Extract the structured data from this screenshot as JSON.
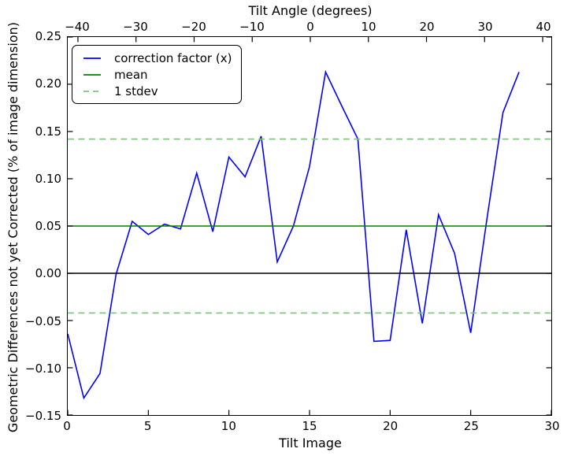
{
  "figure": {
    "background": "#ffffff",
    "axis_color": "#000000"
  },
  "chart_data": {
    "type": "line",
    "title": "",
    "xlabel": "Tilt Image",
    "top_xlabel": "Tilt Angle (degrees)",
    "ylabel": "Geometric Differences not yet Corrected (% of image dimension)",
    "xlim": [
      0,
      30
    ],
    "ylim": [
      -0.15,
      0.25
    ],
    "x_ticks": [
      0,
      5,
      10,
      15,
      20,
      25,
      30
    ],
    "top_ticks_degrees": [
      -40,
      -30,
      -20,
      -10,
      0,
      10,
      20,
      30,
      40
    ],
    "y_ticks": [
      0.25,
      0.2,
      0.15,
      0.1,
      0.05,
      0.0,
      -0.05,
      -0.1,
      -0.15
    ],
    "grid": "off",
    "legend_position": "upper left",
    "series": [
      {
        "name": "correction factor (x)",
        "kind": "line",
        "color": "#0000ff",
        "x": [
          0,
          1,
          2,
          3,
          4,
          5,
          6,
          7,
          8,
          9,
          10,
          11,
          12,
          13,
          14,
          15,
          16,
          17,
          18,
          19,
          20,
          21,
          22,
          23,
          24,
          25,
          26,
          27,
          28
        ],
        "y": [
          -0.064,
          -0.132,
          -0.106,
          -0.001,
          0.055,
          0.041,
          0.052,
          0.047,
          0.106,
          0.044,
          0.123,
          0.102,
          0.145,
          0.012,
          0.05,
          0.113,
          0.213,
          0.177,
          0.142,
          -0.072,
          -0.071,
          0.046,
          -0.053,
          0.062,
          0.021,
          -0.063,
          0.057,
          0.17,
          0.213
        ]
      },
      {
        "name": "mean",
        "kind": "hline",
        "color": "#008000",
        "value": 0.05
      },
      {
        "name": "1 stdev",
        "kind": "hline-dashed",
        "color": "#7cc47c",
        "values": [
          0.142,
          -0.042
        ]
      },
      {
        "name": "zero-line",
        "kind": "hline",
        "color": "#000000",
        "value": 0.0
      }
    ]
  },
  "legend": {
    "items": [
      {
        "label": "correction factor (x)",
        "color": "#0000ff",
        "style": "solid"
      },
      {
        "label": "mean",
        "color": "#008000",
        "style": "solid"
      },
      {
        "label": "1 stdev",
        "color": "#7cc47c",
        "style": "dashed"
      }
    ]
  }
}
